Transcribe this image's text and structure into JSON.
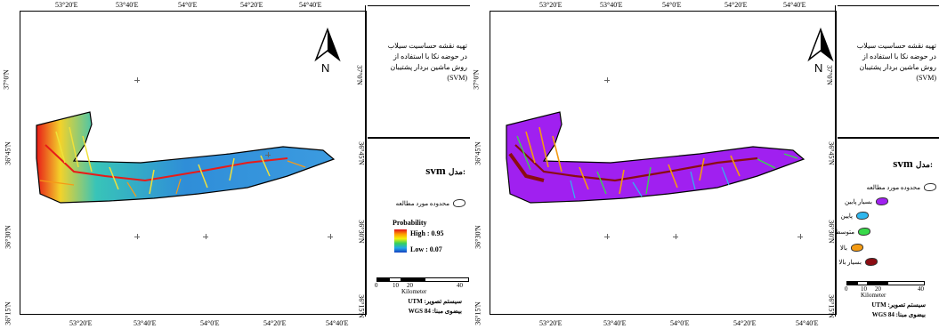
{
  "lon_ticks_top": [
    "53°20'E",
    "53°40'E",
    "54°0'E",
    "54°20'E",
    "54°40'E"
  ],
  "lon_ticks_bottom": [
    "53°20'E",
    "53°40'E",
    "54°0'E",
    "54°20'E",
    "54°40'E"
  ],
  "lat_ticks": [
    "37°0'N",
    "36°45'N",
    "36°30'N",
    "36°15'N"
  ],
  "north_label": "N",
  "title_lines": [
    "تهیه نقشه حساسیت سیلاب",
    "در حوضه نکا با استفاده از",
    "روش ماشین بردار پشتیبان (SVM)"
  ],
  "model_label": "مدل:",
  "model_name": "svm",
  "study_area_label": "محدوده مورد مطالعه",
  "probability": {
    "title": "Probability",
    "high": "High : 0.95",
    "low": "Low : 0.07"
  },
  "classes": [
    {
      "label": "بسیار پایین",
      "color": "#a020f0"
    },
    {
      "label": "پایین",
      "color": "#2fb7ee"
    },
    {
      "label": "متوسط",
      "color": "#38d94a"
    },
    {
      "label": "بالا",
      "color": "#f39a12"
    },
    {
      "label": "بسیار بالا",
      "color": "#8b0c12"
    }
  ],
  "scale": {
    "ticks": [
      "0",
      "10",
      "20",
      "40"
    ],
    "unit": "Kilometer"
  },
  "info": [
    "سیستم تصویر: UTM",
    "بیضوی مبنا: WGS 84"
  ],
  "left_panel": {
    "name": "continuous-probability-map"
  },
  "right_panel": {
    "name": "classified-susceptibility-map"
  }
}
